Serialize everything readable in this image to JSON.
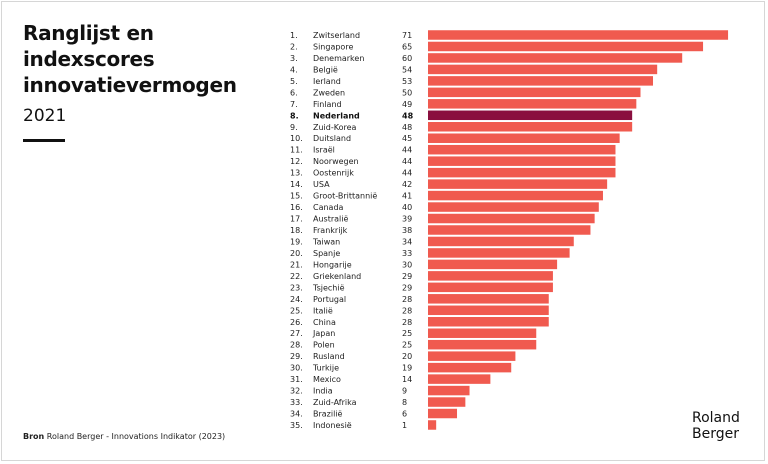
{
  "title_lines": [
    "Ranglijst en",
    "indexscores",
    "innovatievermogen"
  ],
  "year": "2021",
  "source": {
    "prefix": "Bron",
    "text": "Roland Berger - Innovations Indikator (2023)"
  },
  "logo": [
    "Roland",
    "Berger"
  ],
  "colors": {
    "bar": "#f05a4f",
    "highlight": "#8a0f3f"
  },
  "chart_data": {
    "type": "bar",
    "orientation": "horizontal",
    "highlight": "Nederland",
    "ranks": [
      "1.",
      "2.",
      "3.",
      "4.",
      "5.",
      "6.",
      "7.",
      "8.",
      "9.",
      "10.",
      "11.",
      "12.",
      "13.",
      "14.",
      "15.",
      "16.",
      "17.",
      "18.",
      "19.",
      "20.",
      "21.",
      "22.",
      "23.",
      "24.",
      "25.",
      "26.",
      "27.",
      "28.",
      "29.",
      "30.",
      "31.",
      "32.",
      "33.",
      "34.",
      "35."
    ],
    "categories": [
      "Zwitserland",
      "Singapore",
      "Denemarken",
      "België",
      "Ierland",
      "Zweden",
      "Finland",
      "Nederland",
      "Zuid-Korea",
      "Duitsland",
      "Israël",
      "Noorwegen",
      "Oostenrijk",
      "USA",
      "Groot-Brittannië",
      "Canada",
      "Australië",
      "Frankrijk",
      "Taiwan",
      "Spanje",
      "Hongarije",
      "Griekenland",
      "Tsjechië",
      "Portugal",
      "Italië",
      "China",
      "Japan",
      "Polen",
      "Rusland",
      "Turkije",
      "Mexico",
      "India",
      "Zuid-Afrika",
      "Brazilië",
      "Indonesië"
    ],
    "values": [
      71,
      65,
      60,
      54,
      53,
      50,
      49,
      48,
      48,
      45,
      44,
      44,
      44,
      42,
      41,
      40,
      39,
      38,
      34,
      33,
      30,
      29,
      29,
      28,
      28,
      28,
      25,
      25,
      20,
      19,
      14,
      9,
      8,
      6,
      1
    ]
  }
}
